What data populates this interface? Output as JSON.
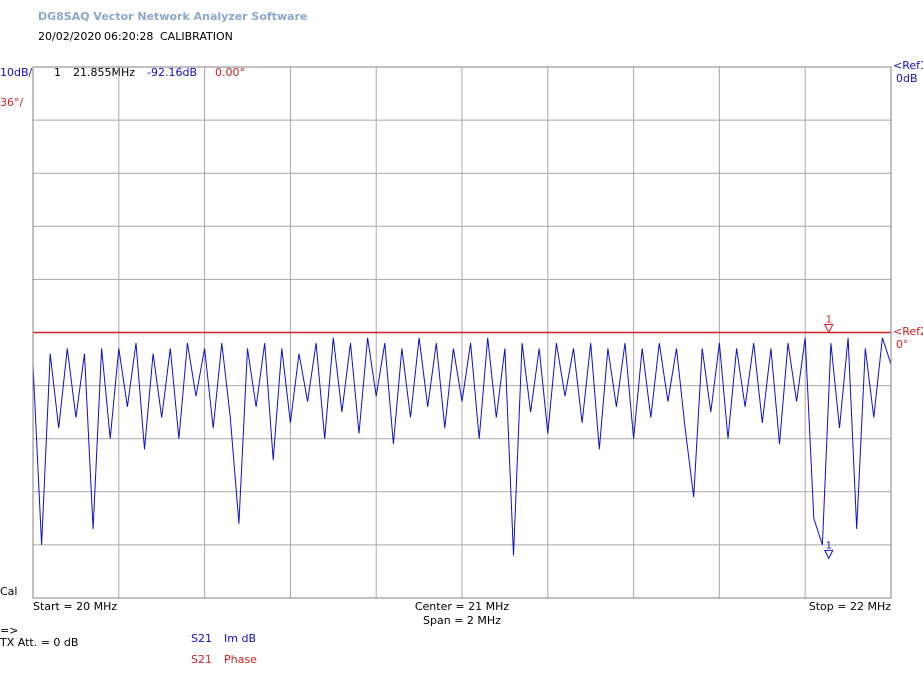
{
  "header": {
    "title": "DG8SAQ Vector Network Analyzer Software",
    "date": "20/02/2020",
    "time": "06:20:28",
    "mode": "CALIBRATION"
  },
  "scale": {
    "trace1": "10dB/",
    "trace2": "36°/"
  },
  "marker": {
    "index": "1",
    "freq": {
      "value": 21.855,
      "label": "21.855MHz"
    },
    "db": {
      "value": -92.16,
      "label": "-92.16dB"
    },
    "phase": {
      "value": 0,
      "label": "0.00°"
    }
  },
  "refs": {
    "ref1": "<Ref1",
    "ref1_level": "0dB",
    "ref2": "<Ref2",
    "ref2_level": "0°"
  },
  "footer": {
    "cal": "Cal",
    "start": "Start = 20 MHz",
    "center": "Center = 21 MHz",
    "span": "Span = 2 MHz",
    "stop": "Stop = 22 MHz",
    "arrow": "=>",
    "tx_att": "TX Att.  = 0 dB"
  },
  "chart_data": {
    "type": "line",
    "xlim": [
      20,
      22
    ],
    "xticks": [
      20,
      20.2,
      20.4,
      20.6,
      20.8,
      21,
      21.2,
      21.4,
      21.6,
      21.8,
      22
    ],
    "ylim": [
      -100,
      0
    ],
    "yticks": [
      -100,
      -90,
      -80,
      -70,
      -60,
      -50,
      -40,
      -30,
      -20,
      -10,
      0
    ],
    "y2lim": [
      -180,
      180
    ],
    "grid": true,
    "series": [
      {
        "name": "S21",
        "label": "Im dB",
        "color": "#1010c0",
        "x": [
          20,
          20.02,
          20.04,
          20.06,
          20.08,
          20.1,
          20.12,
          20.14,
          20.16,
          20.18,
          20.2,
          20.22,
          20.24,
          20.26,
          20.28,
          20.3,
          20.32,
          20.34,
          20.36,
          20.38,
          20.4,
          20.42,
          20.44,
          20.46,
          20.48,
          20.5,
          20.52,
          20.54,
          20.56,
          20.58,
          20.6,
          20.62,
          20.64,
          20.66,
          20.68,
          20.7,
          20.72,
          20.74,
          20.76,
          20.78,
          20.8,
          20.82,
          20.84,
          20.86,
          20.88,
          20.9,
          20.92,
          20.94,
          20.96,
          20.98,
          21,
          21.02,
          21.04,
          21.06,
          21.08,
          21.1,
          21.12,
          21.14,
          21.16,
          21.18,
          21.2,
          21.22,
          21.24,
          21.26,
          21.28,
          21.3,
          21.32,
          21.34,
          21.36,
          21.38,
          21.4,
          21.42,
          21.44,
          21.46,
          21.48,
          21.5,
          21.52,
          21.54,
          21.56,
          21.58,
          21.6,
          21.62,
          21.64,
          21.66,
          21.68,
          21.7,
          21.72,
          21.74,
          21.76,
          21.78,
          21.8,
          21.82,
          21.84,
          21.86,
          21.88,
          21.9,
          21.92,
          21.94,
          21.96,
          21.98,
          22
        ],
        "values": [
          -56,
          -90,
          -54,
          -68,
          -53,
          -66,
          -54,
          -87,
          -53,
          -70,
          -53,
          -64,
          -52,
          -72,
          -54,
          -66,
          -53,
          -70,
          -52,
          -62,
          -53,
          -68,
          -52,
          -66,
          -86,
          -53,
          -64,
          -52,
          -74,
          -53,
          -67,
          -54,
          -63,
          -52,
          -70,
          -51,
          -65,
          -52,
          -69,
          -51,
          -62,
          -52,
          -71,
          -53,
          -66,
          -51,
          -64,
          -52,
          -68,
          -53,
          -63,
          -52,
          -70,
          -51,
          -66,
          -53,
          -92,
          -52,
          -65,
          -53,
          -69,
          -52,
          -62,
          -53,
          -67,
          -52,
          -72,
          -53,
          -64,
          -52,
          -70,
          -53,
          -66,
          -52,
          -63,
          -53,
          -68,
          -81,
          -53,
          -65,
          -52,
          -70,
          -53,
          -64,
          -52,
          -67,
          -53,
          -71,
          -52,
          -63,
          -51,
          -85,
          -90,
          -52,
          -68,
          -51,
          -87,
          -53,
          -66,
          -51,
          -56
        ]
      },
      {
        "name": "S21",
        "label": "Phase",
        "color": "#d02020",
        "axis": "y2",
        "x": [
          20,
          22
        ],
        "values": [
          0,
          0
        ]
      }
    ]
  }
}
